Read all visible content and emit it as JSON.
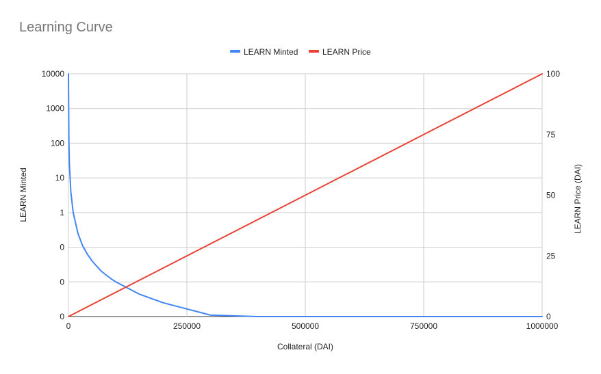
{
  "chart_data": {
    "type": "line",
    "title": "Learning Curve",
    "xlabel": "Collateral (DAI)",
    "ylabel_left": "LEARN Minted",
    "ylabel_right": "LEARN Price (DAI)",
    "xlim": [
      0,
      1000000
    ],
    "x_ticks": [
      0,
      250000,
      500000,
      750000,
      1000000
    ],
    "x_tick_labels": [
      "0",
      "250000",
      "500000",
      "750000",
      "1000000"
    ],
    "y_left_scale": "log",
    "y_left_tick_labels": [
      "0",
      "0",
      "0",
      "1",
      "10",
      "100",
      "1000",
      "10000"
    ],
    "y_left_tick_values": [
      0.001,
      0.01,
      0.1,
      1,
      10,
      100,
      1000,
      10000
    ],
    "y_right_lim": [
      0,
      100
    ],
    "y_right_ticks": [
      0,
      25,
      50,
      75,
      100
    ],
    "legend_position": "top",
    "grid": true,
    "series": [
      {
        "name": "LEARN Minted",
        "axis": "left",
        "color": "#4285f4",
        "x": [
          0,
          1000,
          2000,
          5000,
          10000,
          20000,
          30000,
          40000,
          50000,
          60000,
          70000,
          80000,
          90000,
          100000,
          150000,
          200000,
          300000,
          400000,
          500000,
          600000,
          700000,
          800000,
          900000,
          1000000
        ],
        "y": [
          10000,
          100,
          25,
          4,
          1,
          0.25,
          0.11,
          0.0625,
          0.04,
          0.028,
          0.02,
          0.0156,
          0.0123,
          0.01,
          0.0044,
          0.0025,
          0.0011,
          0.000625,
          0.0004,
          0.00028,
          0.0002,
          0.000156,
          0.000123,
          0.0001
        ]
      },
      {
        "name": "LEARN Price",
        "axis": "right",
        "color": "#ea4335",
        "x": [
          0,
          1000000
        ],
        "y": [
          0,
          100
        ]
      }
    ]
  }
}
